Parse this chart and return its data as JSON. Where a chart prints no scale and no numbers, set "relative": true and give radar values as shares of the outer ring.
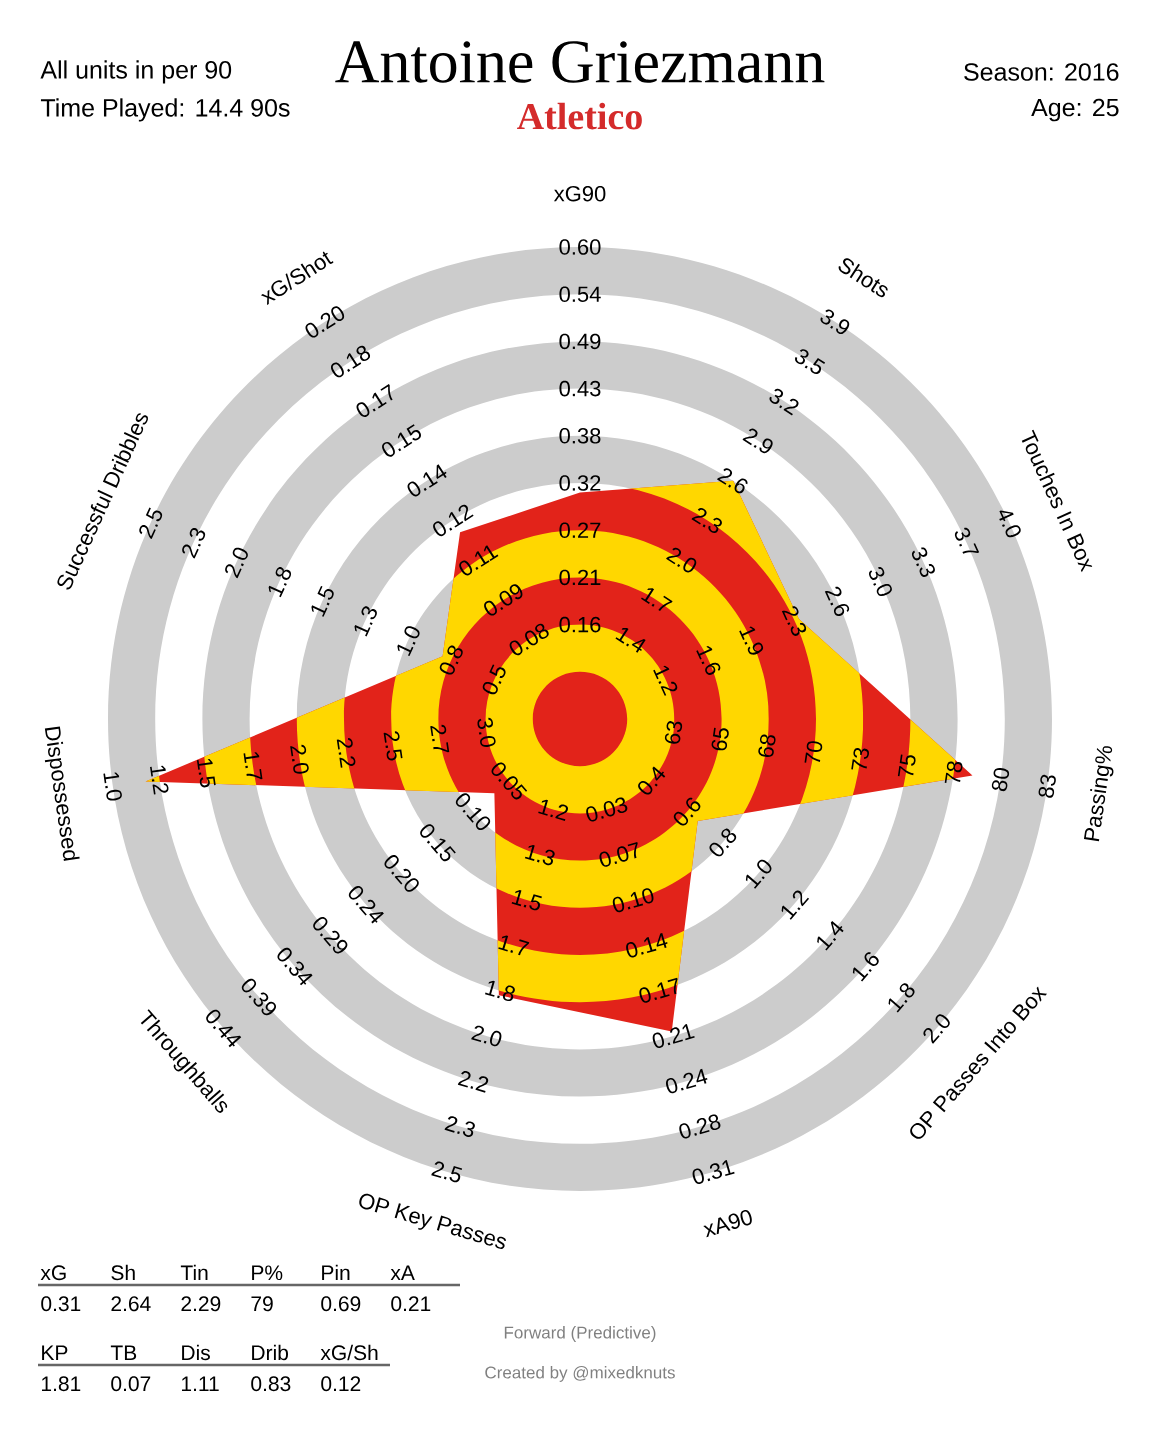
{
  "chart_data": [
    {
      "type": "radar",
      "title": "Antoine Griezmann",
      "subtitle": "Atletico",
      "relative": true,
      "grid": true,
      "categories": [
        "xG90",
        "Shots",
        "Touches In Box",
        "Passing%",
        "OP Passes Into Box",
        "xA90",
        "OP Key Passes",
        "Throughballs",
        "Dispossessed",
        "Successful Dribbles",
        "xG/Shot"
      ],
      "series": [
        {
          "color": "#e2231a",
          "values": [
            0.48,
            0.6,
            0.51,
            0.84,
            0.33,
            0.69,
            0.61,
            0.24,
            0.93,
            0.32,
            0.47
          ]
        }
      ],
      "annotations": [
        "All units in per 90",
        "Time Played: 14.4 90s",
        "Season: 2016",
        "Age: 25",
        "Forward (Predictive)",
        "Created by @mixedknuts",
        {
          "text": "0.16",
          "x": "xG90"
        },
        {
          "text": "0.21",
          "x": "xG90"
        },
        {
          "text": "0.27",
          "x": "xG90"
        },
        {
          "text": "0.32",
          "x": "xG90"
        },
        {
          "text": "0.38",
          "x": "xG90"
        },
        {
          "text": "0.43",
          "x": "xG90"
        },
        {
          "text": "0.49",
          "x": "xG90"
        },
        {
          "text": "0.54",
          "x": "xG90"
        },
        {
          "text": "0.60",
          "x": "xG90"
        },
        {
          "text": "1.4",
          "x": "Shots"
        },
        {
          "text": "1.7",
          "x": "Shots"
        },
        {
          "text": "2.0",
          "x": "Shots"
        },
        {
          "text": "2.3",
          "x": "Shots"
        },
        {
          "text": "2.6",
          "x": "Shots"
        },
        {
          "text": "2.9",
          "x": "Shots"
        },
        {
          "text": "3.2",
          "x": "Shots"
        },
        {
          "text": "3.5",
          "x": "Shots"
        },
        {
          "text": "3.9",
          "x": "Shots"
        },
        {
          "text": "1.2",
          "x": "Touches In Box"
        },
        {
          "text": "1.6",
          "x": "Touches In Box"
        },
        {
          "text": "1.9",
          "x": "Touches In Box"
        },
        {
          "text": "2.3",
          "x": "Touches In Box"
        },
        {
          "text": "2.6",
          "x": "Touches In Box"
        },
        {
          "text": "3.0",
          "x": "Touches In Box"
        },
        {
          "text": "3.3",
          "x": "Touches In Box"
        },
        {
          "text": "3.7",
          "x": "Touches In Box"
        },
        {
          "text": "4.0",
          "x": "Touches In Box"
        },
        {
          "text": "63",
          "x": "Passing%"
        },
        {
          "text": "65",
          "x": "Passing%"
        },
        {
          "text": "68",
          "x": "Passing%"
        },
        {
          "text": "70",
          "x": "Passing%"
        },
        {
          "text": "73",
          "x": "Passing%"
        },
        {
          "text": "75",
          "x": "Passing%"
        },
        {
          "text": "78",
          "x": "Passing%"
        },
        {
          "text": "80",
          "x": "Passing%"
        },
        {
          "text": "83",
          "x": "Passing%"
        },
        {
          "text": "0.4",
          "x": "OP Passes Into Box"
        },
        {
          "text": "0.6",
          "x": "OP Passes Into Box"
        },
        {
          "text": "0.8",
          "x": "OP Passes Into Box"
        },
        {
          "text": "1.0",
          "x": "OP Passes Into Box"
        },
        {
          "text": "1.2",
          "x": "OP Passes Into Box"
        },
        {
          "text": "1.4",
          "x": "OP Passes Into Box"
        },
        {
          "text": "1.6",
          "x": "OP Passes Into Box"
        },
        {
          "text": "1.8",
          "x": "OP Passes Into Box"
        },
        {
          "text": "2.0",
          "x": "OP Passes Into Box"
        },
        {
          "text": "0.03",
          "x": "xA90"
        },
        {
          "text": "0.07",
          "x": "xA90"
        },
        {
          "text": "0.10",
          "x": "xA90"
        },
        {
          "text": "0.14",
          "x": "xA90"
        },
        {
          "text": "0.17",
          "x": "xA90"
        },
        {
          "text": "0.21",
          "x": "xA90"
        },
        {
          "text": "0.24",
          "x": "xA90"
        },
        {
          "text": "0.28",
          "x": "xA90"
        },
        {
          "text": "0.31",
          "x": "xA90"
        },
        {
          "text": "1.2",
          "x": "OP Key Passes"
        },
        {
          "text": "1.3",
          "x": "OP Key Passes"
        },
        {
          "text": "1.5",
          "x": "OP Key Passes"
        },
        {
          "text": "1.7",
          "x": "OP Key Passes"
        },
        {
          "text": "1.8",
          "x": "OP Key Passes"
        },
        {
          "text": "2.0",
          "x": "OP Key Passes"
        },
        {
          "text": "2.2",
          "x": "OP Key Passes"
        },
        {
          "text": "2.3",
          "x": "OP Key Passes"
        },
        {
          "text": "2.5",
          "x": "OP Key Passes"
        },
        {
          "text": "0.05",
          "x": "Throughballs"
        },
        {
          "text": "0.10",
          "x": "Throughballs"
        },
        {
          "text": "0.15",
          "x": "Throughballs"
        },
        {
          "text": "0.20",
          "x": "Throughballs"
        },
        {
          "text": "0.24",
          "x": "Throughballs"
        },
        {
          "text": "0.29",
          "x": "Throughballs"
        },
        {
          "text": "0.34",
          "x": "Throughballs"
        },
        {
          "text": "0.39",
          "x": "Throughballs"
        },
        {
          "text": "0.44",
          "x": "Throughballs"
        },
        {
          "text": "3.0",
          "x": "Dispossessed"
        },
        {
          "text": "2.7",
          "x": "Dispossessed"
        },
        {
          "text": "2.5",
          "x": "Dispossessed"
        },
        {
          "text": "2.2",
          "x": "Dispossessed"
        },
        {
          "text": "2.0",
          "x": "Dispossessed"
        },
        {
          "text": "1.7",
          "x": "Dispossessed"
        },
        {
          "text": "1.5",
          "x": "Dispossessed"
        },
        {
          "text": "1.2",
          "x": "Dispossessed"
        },
        {
          "text": "1.0",
          "x": "Dispossessed"
        },
        {
          "text": "0.5",
          "x": "Successful Dribbles"
        },
        {
          "text": "0.8",
          "x": "Successful Dribbles"
        },
        {
          "text": "1.0",
          "x": "Successful Dribbles"
        },
        {
          "text": "1.3",
          "x": "Successful Dribbles"
        },
        {
          "text": "1.5",
          "x": "Successful Dribbles"
        },
        {
          "text": "1.8",
          "x": "Successful Dribbles"
        },
        {
          "text": "2.0",
          "x": "Successful Dribbles"
        },
        {
          "text": "2.3",
          "x": "Successful Dribbles"
        },
        {
          "text": "2.5",
          "x": "Successful Dribbles"
        },
        {
          "text": "0.08",
          "x": "xG/Shot"
        },
        {
          "text": "0.09",
          "x": "xG/Shot"
        },
        {
          "text": "0.11",
          "x": "xG/Shot"
        },
        {
          "text": "0.12",
          "x": "xG/Shot"
        },
        {
          "text": "0.14",
          "x": "xG/Shot"
        },
        {
          "text": "0.15",
          "x": "xG/Shot"
        },
        {
          "text": "0.17",
          "x": "xG/Shot"
        },
        {
          "text": "0.18",
          "x": "xG/Shot"
        },
        {
          "text": "0.20",
          "x": "xG/Shot"
        }
      ]
    },
    {
      "type": "other",
      "categories": [
        "xG",
        "Sh",
        "Tin",
        "P%",
        "Pin",
        "xA",
        "KP",
        "TB",
        "Dis",
        "Drib",
        "xG/Sh"
      ],
      "values": [
        0.31,
        2.64,
        2.29,
        79,
        0.69,
        0.21,
        1.81,
        0.07,
        1.11,
        0.83,
        0.12
      ],
      "data_labels": true
    }
  ]
}
